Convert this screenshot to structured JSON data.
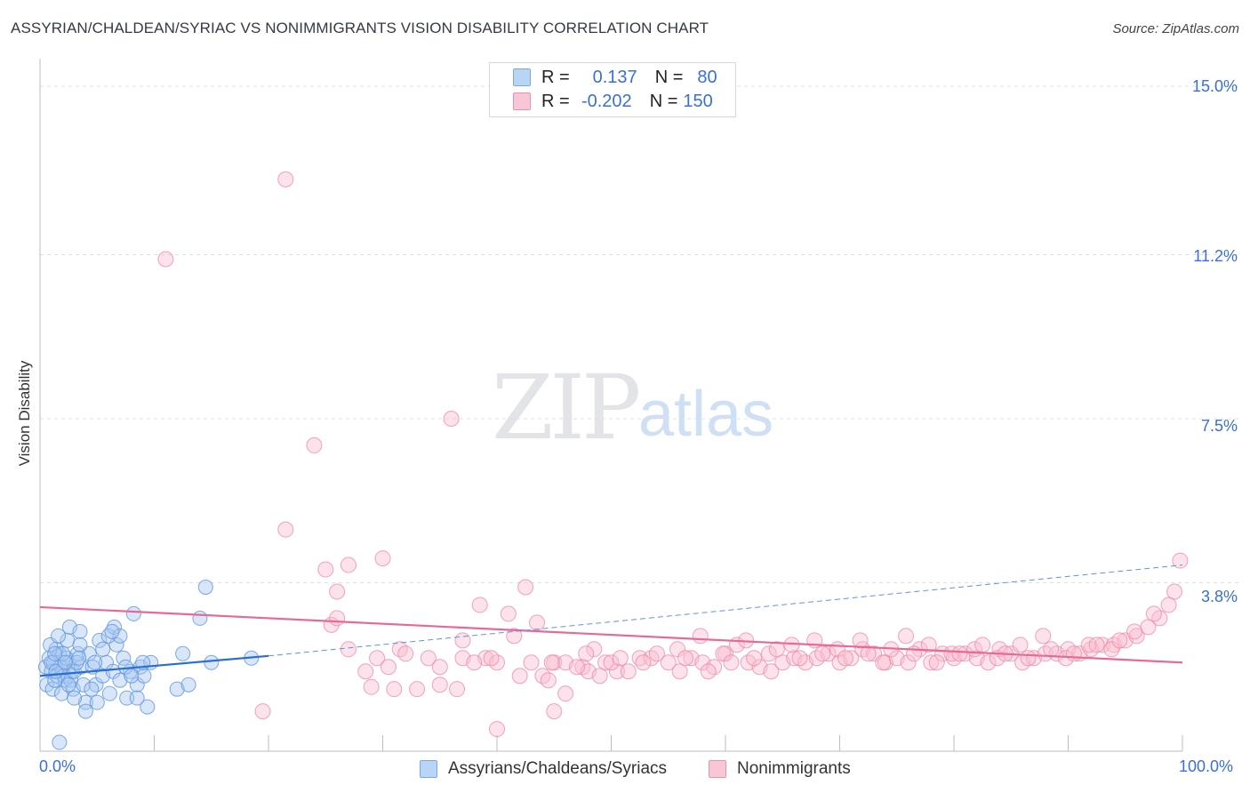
{
  "title": "ASSYRIAN/CHALDEAN/SYRIAC VS NONIMMIGRANTS VISION DISABILITY CORRELATION CHART",
  "source": "Source: ZipAtlas.com",
  "watermark": {
    "zip": "ZIP",
    "atlas": "atlas"
  },
  "legend": {
    "rows": [
      {
        "r_label": "R =",
        "r_value": "0.137",
        "n_label": "N =",
        "n_value": "80"
      },
      {
        "r_label": "R =",
        "r_value": "-0.202",
        "n_label": "N =",
        "n_value": "150"
      }
    ]
  },
  "bottom_legend": [
    "Assyrians/Chaldeans/Syriacs",
    "Nonimmigrants"
  ],
  "colors": {
    "blue": "#5b95e0",
    "blue_fill": "#a9c8f0",
    "pink": "#ee7fa3",
    "pink_fill": "#f8bfd0",
    "blue_line": "#2a6fd1",
    "pink_line": "#e56a97",
    "axis_text": "#3a6fd8"
  },
  "chart_data": {
    "type": "scatter",
    "title": "ASSYRIAN/CHALDEAN/SYRIAC VS NONIMMIGRANTS VISION DISABILITY CORRELATION CHART",
    "xlabel": "",
    "ylabel": "Vision Disability",
    "xlim": [
      0,
      100
    ],
    "ylim": [
      0,
      15.0
    ],
    "ytick_values": [
      3.8,
      7.5,
      11.2,
      15.0
    ],
    "ytick_labels": [
      "3.8%",
      "7.5%",
      "11.2%",
      "15.0%"
    ],
    "xtick_labels": [
      "0.0%",
      "100.0%"
    ],
    "series": [
      {
        "name": "Assyrians/Chaldeans/Syriacs",
        "R": 0.137,
        "N": 80,
        "trend": {
          "x": [
            0,
            20
          ],
          "y": [
            1.7,
            2.15
          ]
        },
        "trend_dashed": {
          "x": [
            20,
            100
          ],
          "y": [
            2.15,
            4.2
          ]
        },
        "points": [
          [
            0.5,
            1.9
          ],
          [
            0.8,
            2.1
          ],
          [
            1.0,
            1.8
          ],
          [
            1.2,
            2.0
          ],
          [
            1.5,
            1.7
          ],
          [
            1.7,
            2.2
          ],
          [
            2.0,
            1.9
          ],
          [
            2.2,
            1.6
          ],
          [
            2.5,
            2.0
          ],
          [
            2.8,
            1.8
          ],
          [
            0.6,
            1.5
          ],
          [
            1.1,
            1.4
          ],
          [
            1.4,
            2.3
          ],
          [
            1.8,
            1.9
          ],
          [
            2.1,
            1.7
          ],
          [
            2.4,
            2.5
          ],
          [
            2.7,
            1.6
          ],
          [
            3.0,
            1.8
          ],
          [
            3.3,
            2.2
          ],
          [
            3.6,
            1.9
          ],
          [
            0.9,
            2.4
          ],
          [
            1.3,
            1.6
          ],
          [
            1.6,
            2.6
          ],
          [
            1.9,
            1.3
          ],
          [
            2.3,
            2.1
          ],
          [
            2.6,
            2.8
          ],
          [
            2.9,
            1.4
          ],
          [
            3.2,
            2.0
          ],
          [
            3.5,
            2.7
          ],
          [
            3.8,
            1.5
          ],
          [
            4.0,
            1.1
          ],
          [
            4.3,
            2.2
          ],
          [
            4.6,
            1.9
          ],
          [
            4.9,
            1.5
          ],
          [
            5.2,
            2.5
          ],
          [
            5.5,
            1.7
          ],
          [
            5.8,
            2.0
          ],
          [
            6.1,
            1.3
          ],
          [
            6.4,
            1.8
          ],
          [
            6.7,
            2.4
          ],
          [
            7.0,
            1.6
          ],
          [
            7.3,
            2.1
          ],
          [
            7.6,
            1.2
          ],
          [
            7.9,
            1.8
          ],
          [
            8.2,
            3.1
          ],
          [
            8.5,
            1.5
          ],
          [
            8.8,
            1.9
          ],
          [
            9.1,
            1.7
          ],
          [
            9.4,
            1.0
          ],
          [
            9.7,
            2.0
          ],
          [
            1.0,
            2.0
          ],
          [
            1.4,
            1.8
          ],
          [
            2.0,
            2.2
          ],
          [
            2.5,
            1.5
          ],
          [
            3.0,
            1.2
          ],
          [
            3.5,
            2.4
          ],
          [
            4.0,
            0.9
          ],
          [
            4.5,
            1.4
          ],
          [
            5.0,
            1.1
          ],
          [
            5.5,
            2.3
          ],
          [
            6.0,
            2.6
          ],
          [
            6.5,
            2.8
          ],
          [
            7.0,
            2.6
          ],
          [
            7.5,
            1.9
          ],
          [
            8.0,
            1.7
          ],
          [
            8.5,
            1.2
          ],
          [
            9.0,
            2.0
          ],
          [
            12.0,
            1.4
          ],
          [
            12.5,
            2.2
          ],
          [
            13.0,
            1.5
          ],
          [
            14.0,
            3.0
          ],
          [
            14.5,
            3.7
          ],
          [
            15.0,
            2.0
          ],
          [
            1.7,
            0.2
          ],
          [
            3.4,
            2.1
          ],
          [
            4.8,
            2.0
          ],
          [
            6.3,
            2.7
          ],
          [
            2.2,
            2.0
          ],
          [
            1.3,
            2.2
          ],
          [
            18.5,
            2.1
          ]
        ]
      },
      {
        "name": "Nonimmigrants",
        "R": -0.202,
        "N": 150,
        "trend": {
          "x": [
            0,
            100
          ],
          "y": [
            3.25,
            2.0
          ]
        },
        "points": [
          [
            21.5,
            12.9
          ],
          [
            11.0,
            11.1
          ],
          [
            24.0,
            6.9
          ],
          [
            36.0,
            7.5
          ],
          [
            21.5,
            5.0
          ],
          [
            25.0,
            4.1
          ],
          [
            27.0,
            4.2
          ],
          [
            30.0,
            4.35
          ],
          [
            26.0,
            3.6
          ],
          [
            38.5,
            3.3
          ],
          [
            41.0,
            3.1
          ],
          [
            42.5,
            3.7
          ],
          [
            25.5,
            2.85
          ],
          [
            27.0,
            2.3
          ],
          [
            29.5,
            2.1
          ],
          [
            31.5,
            2.3
          ],
          [
            34.0,
            2.1
          ],
          [
            35.0,
            1.9
          ],
          [
            37.0,
            2.5
          ],
          [
            39.0,
            2.1
          ],
          [
            40.0,
            2.0
          ],
          [
            42.0,
            1.7
          ],
          [
            43.5,
            2.9
          ],
          [
            45.0,
            2.0
          ],
          [
            46.0,
            2.0
          ],
          [
            47.5,
            1.9
          ],
          [
            48.5,
            2.3
          ],
          [
            49.5,
            2.0
          ],
          [
            50.5,
            1.8
          ],
          [
            51.5,
            1.8
          ],
          [
            52.5,
            2.1
          ],
          [
            53.5,
            2.1
          ],
          [
            54.0,
            2.2
          ],
          [
            55.0,
            2.0
          ],
          [
            56.0,
            1.8
          ],
          [
            57.0,
            2.1
          ],
          [
            58.0,
            2.0
          ],
          [
            59.0,
            1.9
          ],
          [
            60.0,
            2.2
          ],
          [
            61.0,
            2.4
          ],
          [
            62.0,
            2.0
          ],
          [
            63.0,
            1.9
          ],
          [
            64.0,
            1.8
          ],
          [
            65.0,
            2.0
          ],
          [
            66.0,
            2.1
          ],
          [
            67.0,
            2.0
          ],
          [
            68.0,
            2.1
          ],
          [
            69.0,
            2.2
          ],
          [
            70.0,
            2.0
          ],
          [
            71.0,
            2.1
          ],
          [
            72.0,
            2.3
          ],
          [
            73.0,
            2.2
          ],
          [
            74.0,
            2.0
          ],
          [
            75.0,
            2.1
          ],
          [
            76.0,
            2.0
          ],
          [
            77.0,
            2.3
          ],
          [
            78.0,
            2.0
          ],
          [
            79.0,
            2.2
          ],
          [
            80.0,
            2.1
          ],
          [
            81.0,
            2.2
          ],
          [
            82.0,
            2.1
          ],
          [
            83.0,
            2.0
          ],
          [
            84.0,
            2.3
          ],
          [
            85.0,
            2.2
          ],
          [
            86.0,
            2.0
          ],
          [
            87.0,
            2.1
          ],
          [
            88.0,
            2.2
          ],
          [
            89.0,
            2.2
          ],
          [
            90.0,
            2.3
          ],
          [
            91.0,
            2.2
          ],
          [
            92.0,
            2.3
          ],
          [
            93.0,
            2.4
          ],
          [
            94.0,
            2.4
          ],
          [
            95.0,
            2.5
          ],
          [
            96.0,
            2.6
          ],
          [
            97.0,
            2.8
          ],
          [
            98.0,
            3.0
          ],
          [
            98.8,
            3.3
          ],
          [
            99.3,
            3.6
          ],
          [
            99.8,
            4.3
          ],
          [
            19.5,
            0.9
          ],
          [
            33.0,
            1.4
          ],
          [
            35.0,
            1.5
          ],
          [
            29.0,
            1.45
          ],
          [
            31.0,
            1.4
          ],
          [
            40.0,
            0.5
          ],
          [
            44.0,
            1.7
          ],
          [
            44.5,
            1.6
          ],
          [
            46.0,
            1.3
          ],
          [
            48.0,
            1.8
          ],
          [
            49.0,
            1.7
          ],
          [
            45.0,
            0.9
          ],
          [
            47.0,
            1.9
          ],
          [
            50.0,
            2.0
          ],
          [
            36.5,
            1.4
          ],
          [
            37.0,
            2.1
          ],
          [
            32.0,
            2.2
          ],
          [
            30.5,
            1.9
          ],
          [
            28.5,
            1.8
          ],
          [
            26.0,
            3.0
          ],
          [
            38.0,
            2.0
          ],
          [
            39.5,
            2.1
          ],
          [
            41.5,
            2.6
          ],
          [
            43.0,
            2.0
          ],
          [
            44.8,
            2.0
          ],
          [
            47.8,
            2.2
          ],
          [
            50.8,
            2.1
          ],
          [
            52.8,
            2.0
          ],
          [
            55.8,
            2.3
          ],
          [
            57.8,
            2.6
          ],
          [
            59.8,
            2.2
          ],
          [
            61.8,
            2.5
          ],
          [
            63.8,
            2.2
          ],
          [
            65.8,
            2.4
          ],
          [
            67.8,
            2.5
          ],
          [
            69.8,
            2.3
          ],
          [
            71.8,
            2.5
          ],
          [
            73.8,
            2.0
          ],
          [
            75.8,
            2.6
          ],
          [
            77.8,
            2.4
          ],
          [
            79.8,
            2.2
          ],
          [
            81.8,
            2.3
          ],
          [
            83.8,
            2.1
          ],
          [
            85.8,
            2.4
          ],
          [
            87.8,
            2.6
          ],
          [
            89.8,
            2.1
          ],
          [
            91.8,
            2.4
          ],
          [
            93.8,
            2.3
          ],
          [
            95.8,
            2.7
          ],
          [
            97.5,
            3.1
          ],
          [
            56.5,
            2.1
          ],
          [
            58.5,
            1.8
          ],
          [
            60.5,
            2.0
          ],
          [
            62.5,
            2.1
          ],
          [
            64.5,
            2.3
          ],
          [
            66.5,
            2.1
          ],
          [
            68.5,
            2.2
          ],
          [
            70.5,
            2.1
          ],
          [
            72.5,
            2.2
          ],
          [
            74.5,
            2.3
          ],
          [
            76.5,
            2.2
          ],
          [
            78.5,
            2.0
          ],
          [
            80.5,
            2.2
          ],
          [
            82.5,
            2.4
          ],
          [
            84.5,
            2.2
          ],
          [
            86.5,
            2.1
          ],
          [
            88.5,
            2.3
          ],
          [
            90.5,
            2.2
          ],
          [
            92.5,
            2.4
          ],
          [
            94.5,
            2.5
          ]
        ]
      }
    ]
  }
}
